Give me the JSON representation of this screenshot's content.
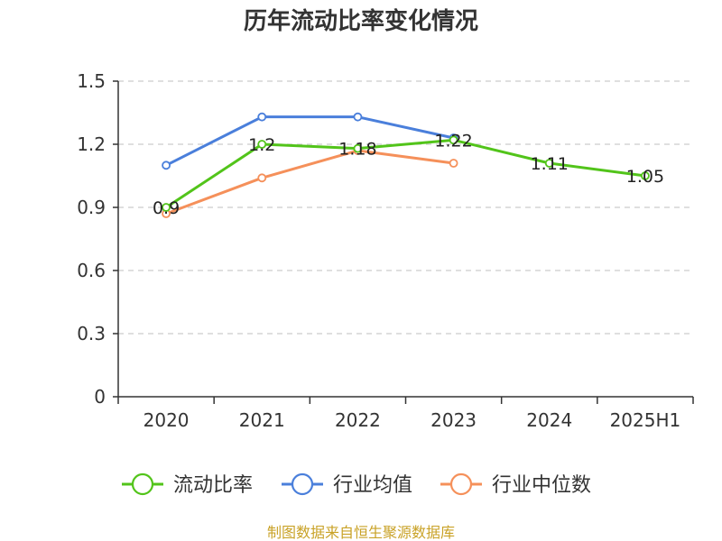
{
  "chart_data": {
    "type": "line",
    "title": "历年流动比率变化情况",
    "categories": [
      "2020",
      "2021",
      "2022",
      "2023",
      "2024",
      "2025H1"
    ],
    "ylim": [
      0,
      1.5
    ],
    "yticks": [
      "0",
      "0.3",
      "0.6",
      "0.9",
      "1.2",
      "1.5"
    ],
    "grid": true,
    "legend_position": "bottom",
    "series": [
      {
        "name": "流动比率",
        "color": "#52c41a",
        "values": [
          0.9,
          1.2,
          1.18,
          1.22,
          1.11,
          1.05
        ],
        "labels": [
          "0.9",
          "1.2",
          "1.18",
          "1.22",
          "1.11",
          "1.05"
        ]
      },
      {
        "name": "行业均值",
        "color": "#4a7fdb",
        "values": [
          1.1,
          1.33,
          1.33,
          1.23,
          null,
          null
        ]
      },
      {
        "name": "行业中位数",
        "color": "#f5905a",
        "values": [
          0.87,
          1.04,
          1.17,
          1.11,
          null,
          null
        ]
      }
    ]
  },
  "source": {
    "text": "制图数据来自恒生聚源数据库",
    "color": "#c9a227"
  }
}
